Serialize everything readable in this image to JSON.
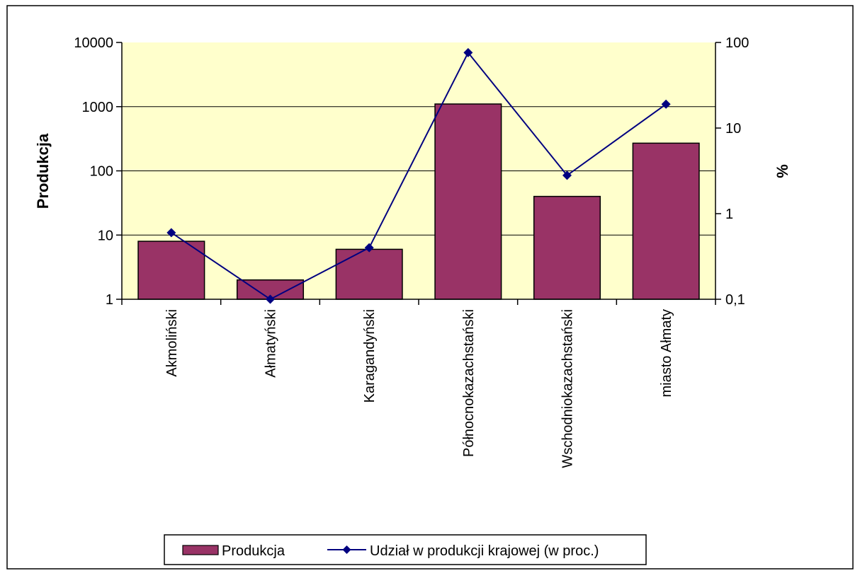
{
  "chart_data": {
    "type": "bar",
    "categories": [
      "Akmoliński",
      "Ałmatyński",
      "Karagandyński",
      "Północnokazachstański",
      "Wschodniokazachstański",
      "miasto Ałmaty"
    ],
    "series": [
      {
        "name": "Produkcja",
        "type": "bar",
        "axis": "left",
        "values": [
          8,
          2,
          6,
          1100,
          40,
          270
        ]
      },
      {
        "name": "Udział w produkcji krajowej (w proc.)",
        "type": "line",
        "axis": "right",
        "values": [
          0.6,
          0.1,
          0.4,
          76,
          2.8,
          19
        ]
      }
    ],
    "ylabel": "Produkcja",
    "ylabel_right": "%",
    "yscale": "log",
    "ylim": [
      1,
      10000
    ],
    "yticks": [
      "1",
      "10",
      "100",
      "1000",
      "10000"
    ],
    "ylim_right": [
      0.1,
      100
    ],
    "yticks_right": [
      "0,1",
      "1",
      "10",
      "100"
    ],
    "grid": true,
    "legend_position": "bottom",
    "colors": {
      "bar_fill": "#993366",
      "line": "#000080",
      "plot_background": "#FFFFCC",
      "gridline": "#000000"
    }
  }
}
